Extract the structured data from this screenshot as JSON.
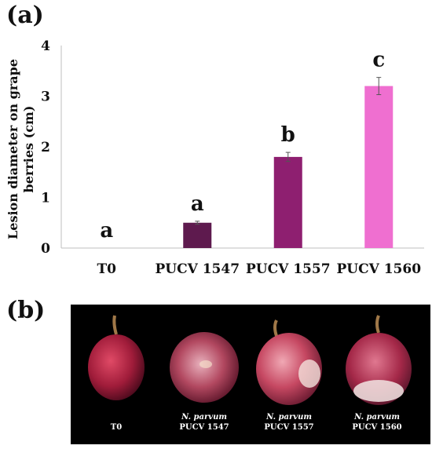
{
  "panel_a_label": "(a)",
  "panel_b_label": "(b)",
  "chart_data": {
    "type": "bar",
    "categories": [
      "T0",
      "PUCV 1547",
      "PUCV 1557",
      "PUCV 1560"
    ],
    "values": [
      0,
      0.5,
      1.8,
      3.2
    ],
    "errors": [
      0,
      0.03,
      0.09,
      0.17
    ],
    "significance_letters": [
      "a",
      "a",
      "b",
      "c"
    ],
    "bar_colors": [
      "#ffffff",
      "#5e1a4e",
      "#8e1f70",
      "#ef6fd0"
    ],
    "ylabel_line1": "Lesion diameter on grape",
    "ylabel_line2": "berries (cm)",
    "xlabel": "",
    "ylim": [
      0,
      4
    ],
    "yticks": [
      "0",
      "1",
      "2",
      "3",
      "4"
    ],
    "grid": false
  },
  "photo": {
    "captions": [
      {
        "species": "",
        "strain": "T0"
      },
      {
        "species": "N. parvum",
        "strain": "PUCV 1547"
      },
      {
        "species": "N. parvum",
        "strain": "PUCV 1557"
      },
      {
        "species": "N. parvum",
        "strain": "PUCV 1560"
      }
    ]
  }
}
